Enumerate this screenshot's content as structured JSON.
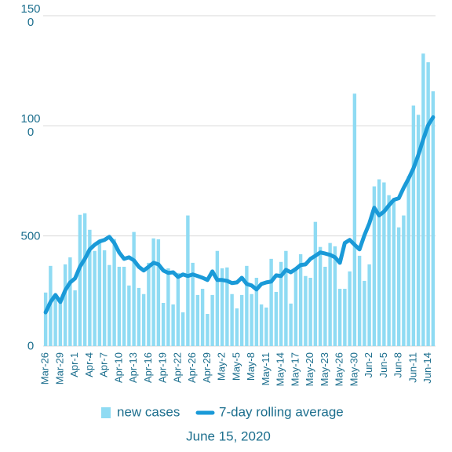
{
  "chart_data": {
    "type": "bar_line",
    "subtitle": "June 15, 2020",
    "categories": [
      "Mar-26",
      null,
      null,
      "Mar-29",
      null,
      null,
      "Apr-1",
      null,
      null,
      "Apr-4",
      null,
      null,
      "Apr-7",
      null,
      null,
      "Apr-10",
      null,
      null,
      "Apr-13",
      null,
      null,
      "Apr-16",
      null,
      null,
      "Apr-19",
      null,
      null,
      "Apr-22",
      null,
      null,
      "Apr-26",
      null,
      null,
      "Apr-29",
      null,
      null,
      "May-2",
      null,
      null,
      "May-5",
      null,
      null,
      "May-8",
      null,
      null,
      "May-11",
      null,
      null,
      "May-14",
      null,
      null,
      "May-17",
      null,
      null,
      "May-20",
      null,
      null,
      "May-23",
      null,
      null,
      "May-26",
      null,
      null,
      "May-30",
      null,
      null,
      "Jun-2",
      null,
      null,
      "Jun-5",
      null,
      null,
      "Jun-8",
      null,
      null,
      "Jun-11",
      null,
      null,
      "Jun-14",
      null
    ],
    "series": [
      {
        "name": "new cases",
        "type": "bar",
        "color": "#8fdbf3",
        "values": [
          243,
          364,
          225,
          200,
          371,
          403,
          253,
          596,
          603,
          528,
          432,
          468,
          435,
          368,
          486,
          360,
          360,
          275,
          518,
          264,
          236,
          378,
          489,
          485,
          196,
          353,
          189,
          332,
          153,
          593,
          378,
          232,
          260,
          146,
          232,
          432,
          353,
          357,
          236,
          171,
          232,
          364,
          236,
          310,
          189,
          175,
          396,
          246,
          382,
          432,
          193,
          353,
          417,
          318,
          310,
          564,
          450,
          360,
          468,
          453,
          260,
          260,
          339,
          1146,
          410,
          296,
          371,
          725,
          757,
          743,
          685,
          668,
          539,
          593,
          771,
          1092,
          1050,
          1328,
          1289,
          1157
        ]
      },
      {
        "name": "7-day rolling average",
        "type": "line",
        "color": "#1a9ad8",
        "values": [
          153,
          200,
          232,
          200,
          253,
          289,
          307,
          360,
          396,
          439,
          460,
          475,
          482,
          496,
          468,
          425,
          396,
          403,
          389,
          360,
          343,
          360,
          378,
          371,
          343,
          332,
          335,
          314,
          325,
          318,
          325,
          318,
          310,
          300,
          339,
          300,
          300,
          296,
          286,
          289,
          310,
          282,
          275,
          257,
          282,
          289,
          293,
          321,
          318,
          346,
          335,
          350,
          368,
          371,
          396,
          410,
          425,
          420,
          414,
          403,
          378,
          468,
          482,
          460,
          439,
          503,
          557,
          628,
          593,
          611,
          639,
          664,
          671,
          718,
          760,
          807,
          868,
          939,
          1003,
          1039
        ]
      }
    ],
    "ylim": [
      0,
      1500
    ],
    "yticks": [
      0,
      500,
      1000,
      1500
    ],
    "grid": true,
    "legend": "bottom"
  }
}
